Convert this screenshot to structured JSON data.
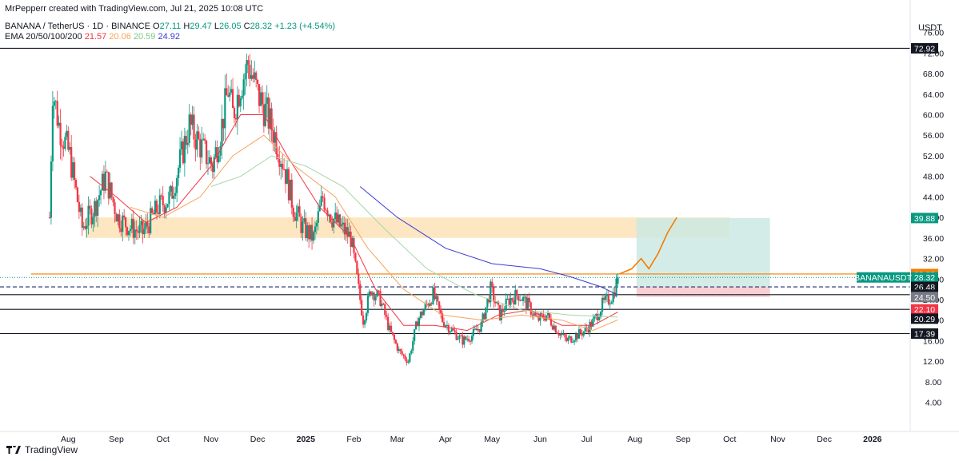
{
  "header": {
    "creator_line": "MrPepperr created with TradingView.com, Jul 21, 2025 10:08 UTC",
    "symbol": "BANANA / TetherUS · 1D · BINANCE",
    "ohlc": {
      "o_label": "O",
      "o": "27.11",
      "h_label": "H",
      "h": "29.47",
      "l_label": "L",
      "l": "26.05",
      "c_label": "C",
      "c": "28.32",
      "change": "+1.23 (+4.54%)"
    },
    "ema_label": "EMA 20/50/100/200",
    "ema_values": {
      "e20": "21.57",
      "e50": "20.06",
      "e100": "20.59",
      "e200": "24.92"
    },
    "currency": "USDT"
  },
  "colors": {
    "up": "#089981",
    "down": "#f23645",
    "ema20": "#f23645",
    "ema50": "#f7a35c",
    "ema100": "#a5d6a7",
    "ema200": "#3b3bd6",
    "zone": "#fde3b8",
    "target": "#cde9e3",
    "stop": "#f8cfd2",
    "projection": "#f57c00"
  },
  "footer": {
    "brand": "TradingView",
    "logo_icon": "tradingview-logo-icon"
  },
  "chart_data": {
    "type": "candlestick",
    "title": "BANANA / TetherUS · 1D · BINANCE",
    "y_ticks": [
      "4.00",
      "8.00",
      "12.00",
      "16.00",
      "20.00",
      "24.00",
      "28.00",
      "32.00",
      "36.00",
      "40.00",
      "44.00",
      "48.00",
      "52.00",
      "56.00",
      "60.00",
      "64.00",
      "68.00",
      "72.00",
      "76.00"
    ],
    "ylim": [
      4,
      80
    ],
    "x_ticks": [
      "Aug",
      "Sep",
      "Oct",
      "Nov",
      "Dec",
      "2025",
      "Feb",
      "Mar",
      "Apr",
      "May",
      "Jun",
      "Jul",
      "Aug",
      "Sep",
      "Oct",
      "Nov",
      "Dec",
      "2026"
    ],
    "x_range": [
      "2024-07-20",
      "2026-01-15"
    ],
    "anchors": {
      "first_candle": "2024-07-20",
      "last_candle": "2025-07-21",
      "count": 367
    },
    "path_points": [
      [
        "2024-07-20",
        40
      ],
      [
        "2024-07-22",
        65
      ],
      [
        "2024-07-26",
        58
      ],
      [
        "2024-08-02",
        52
      ],
      [
        "2024-08-10",
        38
      ],
      [
        "2024-08-18",
        42
      ],
      [
        "2024-08-25",
        48
      ],
      [
        "2024-09-02",
        40
      ],
      [
        "2024-09-10",
        38
      ],
      [
        "2024-09-18",
        37
      ],
      [
        "2024-09-28",
        42
      ],
      [
        "2024-10-06",
        44
      ],
      [
        "2024-10-13",
        52
      ],
      [
        "2024-10-18",
        58
      ],
      [
        "2024-10-25",
        54
      ],
      [
        "2024-11-02",
        50
      ],
      [
        "2024-11-08",
        58
      ],
      [
        "2024-11-12",
        65
      ],
      [
        "2024-11-15",
        60
      ],
      [
        "2024-11-20",
        66
      ],
      [
        "2024-11-25",
        70
      ],
      [
        "2024-12-01",
        64
      ],
      [
        "2024-12-07",
        60
      ],
      [
        "2024-12-12",
        56
      ],
      [
        "2024-12-18",
        50
      ],
      [
        "2024-12-24",
        42
      ],
      [
        "2024-12-30",
        38
      ],
      [
        "2025-01-06",
        36
      ],
      [
        "2025-01-12",
        44
      ],
      [
        "2025-01-18",
        40
      ],
      [
        "2025-01-24",
        38
      ],
      [
        "2025-01-30",
        36
      ],
      [
        "2025-02-03",
        28
      ],
      [
        "2025-02-07",
        20
      ],
      [
        "2025-02-12",
        26
      ],
      [
        "2025-02-18",
        24
      ],
      [
        "2025-02-24",
        18
      ],
      [
        "2025-03-02",
        14
      ],
      [
        "2025-03-08",
        12
      ],
      [
        "2025-03-14",
        20
      ],
      [
        "2025-03-18",
        22
      ],
      [
        "2025-03-24",
        25
      ],
      [
        "2025-03-30",
        20
      ],
      [
        "2025-04-05",
        18
      ],
      [
        "2025-04-12",
        16
      ],
      [
        "2025-04-18",
        17
      ],
      [
        "2025-04-24",
        19
      ],
      [
        "2025-04-30",
        26
      ],
      [
        "2025-05-06",
        21
      ],
      [
        "2025-05-12",
        24
      ],
      [
        "2025-05-18",
        25
      ],
      [
        "2025-05-24",
        23
      ],
      [
        "2025-05-30",
        20
      ],
      [
        "2025-06-05",
        21
      ],
      [
        "2025-06-12",
        18
      ],
      [
        "2025-06-18",
        16
      ],
      [
        "2025-06-24",
        17
      ],
      [
        "2025-06-30",
        18
      ],
      [
        "2025-07-06",
        20
      ],
      [
        "2025-07-11",
        23
      ],
      [
        "2025-07-15",
        24
      ],
      [
        "2025-07-18",
        25
      ],
      [
        "2025-07-21",
        28.32
      ]
    ],
    "ema_series": [
      {
        "name": "EMA 20",
        "color": "#f23645",
        "points": [
          [
            "2024-08-15",
            48
          ],
          [
            "2024-09-01",
            44
          ],
          [
            "2024-09-20",
            39
          ],
          [
            "2024-10-10",
            42
          ],
          [
            "2024-11-01",
            50
          ],
          [
            "2024-11-20",
            60
          ],
          [
            "2024-12-05",
            60
          ],
          [
            "2024-12-20",
            52
          ],
          [
            "2025-01-10",
            42
          ],
          [
            "2025-01-30",
            36
          ],
          [
            "2025-02-15",
            26
          ],
          [
            "2025-03-05",
            19
          ],
          [
            "2025-03-25",
            19
          ],
          [
            "2025-04-15",
            18
          ],
          [
            "2025-05-05",
            21
          ],
          [
            "2025-05-25",
            22
          ],
          [
            "2025-06-15",
            19
          ],
          [
            "2025-07-05",
            19
          ],
          [
            "2025-07-21",
            21.57
          ]
        ]
      },
      {
        "name": "EMA 50",
        "color": "#f7a35c",
        "points": [
          [
            "2024-09-10",
            42
          ],
          [
            "2024-10-01",
            40
          ],
          [
            "2024-10-25",
            44
          ],
          [
            "2024-11-15",
            52
          ],
          [
            "2024-12-05",
            56
          ],
          [
            "2024-12-25",
            50
          ],
          [
            "2025-01-20",
            44
          ],
          [
            "2025-02-10",
            34
          ],
          [
            "2025-03-05",
            26
          ],
          [
            "2025-03-30",
            21
          ],
          [
            "2025-04-25",
            20
          ],
          [
            "2025-05-20",
            21
          ],
          [
            "2025-06-15",
            20
          ],
          [
            "2025-07-05",
            18
          ],
          [
            "2025-07-21",
            20.06
          ]
        ]
      },
      {
        "name": "EMA 100",
        "color": "#a5d6a7",
        "points": [
          [
            "2024-11-01",
            46
          ],
          [
            "2024-11-20",
            48
          ],
          [
            "2024-12-10",
            52
          ],
          [
            "2025-01-01",
            50
          ],
          [
            "2025-01-25",
            46
          ],
          [
            "2025-02-20",
            38
          ],
          [
            "2025-03-20",
            30
          ],
          [
            "2025-04-20",
            25
          ],
          [
            "2025-05-20",
            22
          ],
          [
            "2025-06-20",
            21
          ],
          [
            "2025-07-21",
            20.59
          ]
        ]
      },
      {
        "name": "EMA 200",
        "color": "#3b3bd6",
        "points": [
          [
            "2025-02-05",
            46
          ],
          [
            "2025-03-01",
            40
          ],
          [
            "2025-04-01",
            34
          ],
          [
            "2025-05-01",
            31
          ],
          [
            "2025-06-01",
            30
          ],
          [
            "2025-06-20",
            28.5
          ],
          [
            "2025-07-10",
            26.5
          ],
          [
            "2025-07-21",
            24.92
          ]
        ]
      }
    ],
    "horizontal_lines": [
      {
        "value": 72.92,
        "color": "#131722"
      },
      {
        "value": 24.97,
        "color": "#131722"
      },
      {
        "value": 22.1,
        "color": "#131722"
      },
      {
        "value": 17.39,
        "color": "#131722"
      },
      {
        "value": 26.48,
        "color": "#1e2a6e",
        "dashed": true
      },
      {
        "value": 28.98,
        "color": "#f57c00",
        "from": "2024-07-08"
      },
      {
        "value": 28.32,
        "color": "#089981",
        "dotted": true
      }
    ],
    "zone": {
      "from": "2024-08-12",
      "to": "2025-10-01",
      "low": 36,
      "high": 40,
      "color": "#fde3b8"
    },
    "position": {
      "from": "2025-08-02",
      "to": "2025-10-27",
      "entry": 26.48,
      "target": 39.88,
      "stop": 24.5
    },
    "projection": [
      [
        "2025-07-22",
        29
      ],
      [
        "2025-07-30",
        30
      ],
      [
        "2025-08-05",
        32
      ],
      [
        "2025-08-10",
        30
      ],
      [
        "2025-08-16",
        33
      ],
      [
        "2025-08-22",
        37
      ],
      [
        "2025-08-28",
        40
      ]
    ],
    "price_tags": [
      {
        "value": 72.92,
        "label": "72.92",
        "bg": "#131722"
      },
      {
        "value": 39.88,
        "label": "39.88",
        "bg": "#089981"
      },
      {
        "value": 28.98,
        "label": "28.98",
        "bg": "#f57c00"
      },
      {
        "value": 28.32,
        "label": "28.32",
        "bg": "#089981",
        "symbol": "BANANAUSDT"
      },
      {
        "value": 26.48,
        "label": "26.48",
        "bg": "#131722"
      },
      {
        "value": 24.97,
        "label": "24.97",
        "bg": "#131722"
      },
      {
        "value": 24.5,
        "label": "24.50",
        "bg": "#787b86"
      },
      {
        "value": 22.1,
        "label": "22.10",
        "bg": "#f23645"
      },
      {
        "value": 20.29,
        "label": "20.29",
        "bg": "#131722"
      },
      {
        "value": 17.39,
        "label": "17.39",
        "bg": "#131722"
      }
    ]
  }
}
